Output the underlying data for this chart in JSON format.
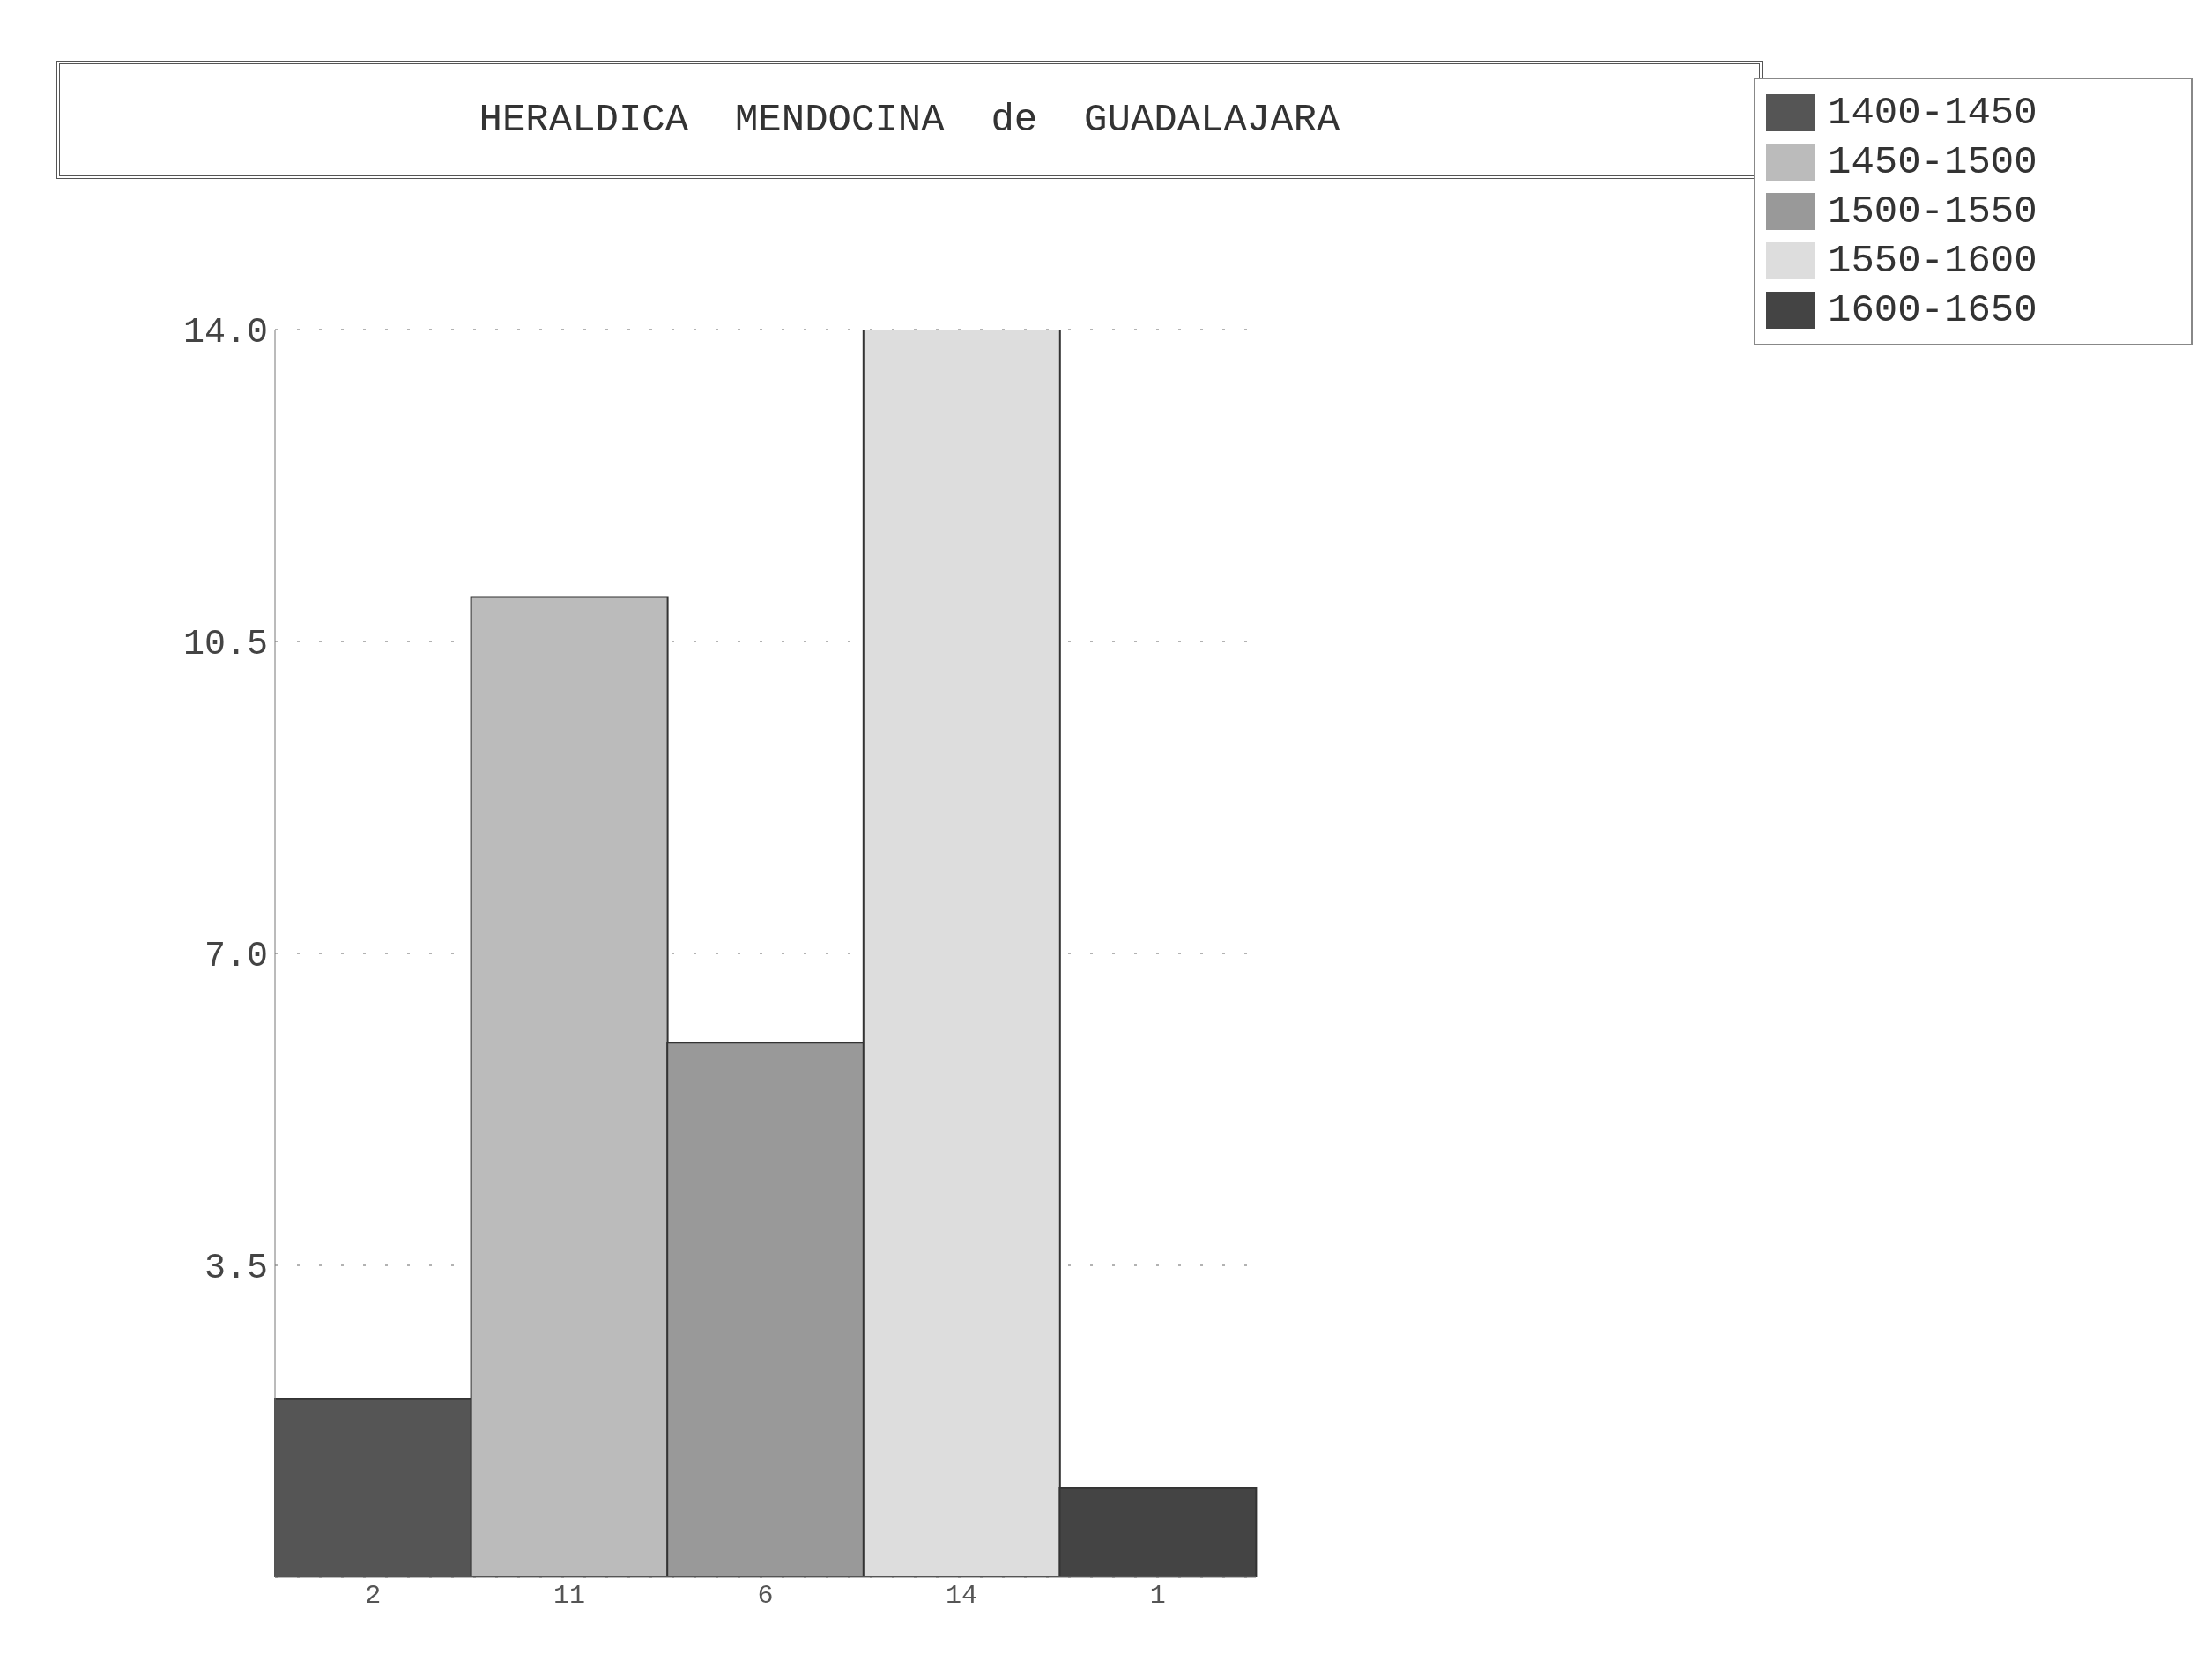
{
  "chart_data": {
    "type": "bar",
    "title": "HERALDICA  MENDOCINA  de  GUADALAJARA",
    "categories": [
      "2",
      "11",
      "6",
      "14",
      "1"
    ],
    "series": [
      {
        "name": "1400-1450",
        "color": "#555555",
        "values": [
          2,
          null,
          null,
          null,
          null
        ]
      },
      {
        "name": "1450-1500",
        "color": "#bbbbbb",
        "values": [
          null,
          11,
          null,
          null,
          null
        ]
      },
      {
        "name": "1500-1550",
        "color": "#999999",
        "values": [
          null,
          null,
          6,
          null,
          null
        ]
      },
      {
        "name": "1550-1600",
        "color": "#dddddd",
        "values": [
          null,
          null,
          null,
          14,
          null
        ]
      },
      {
        "name": "1600-1650",
        "color": "#444444",
        "values": [
          null,
          null,
          null,
          null,
          1
        ]
      }
    ],
    "ylim": [
      0,
      14
    ],
    "yticks": [
      {
        "value": 3.5,
        "label": "3.5"
      },
      {
        "value": 7,
        "label": "7.0"
      },
      10.5,
      {
        "value": 14,
        "label": "14.0"
      }
    ],
    "grid": "y",
    "legend": "top right"
  }
}
